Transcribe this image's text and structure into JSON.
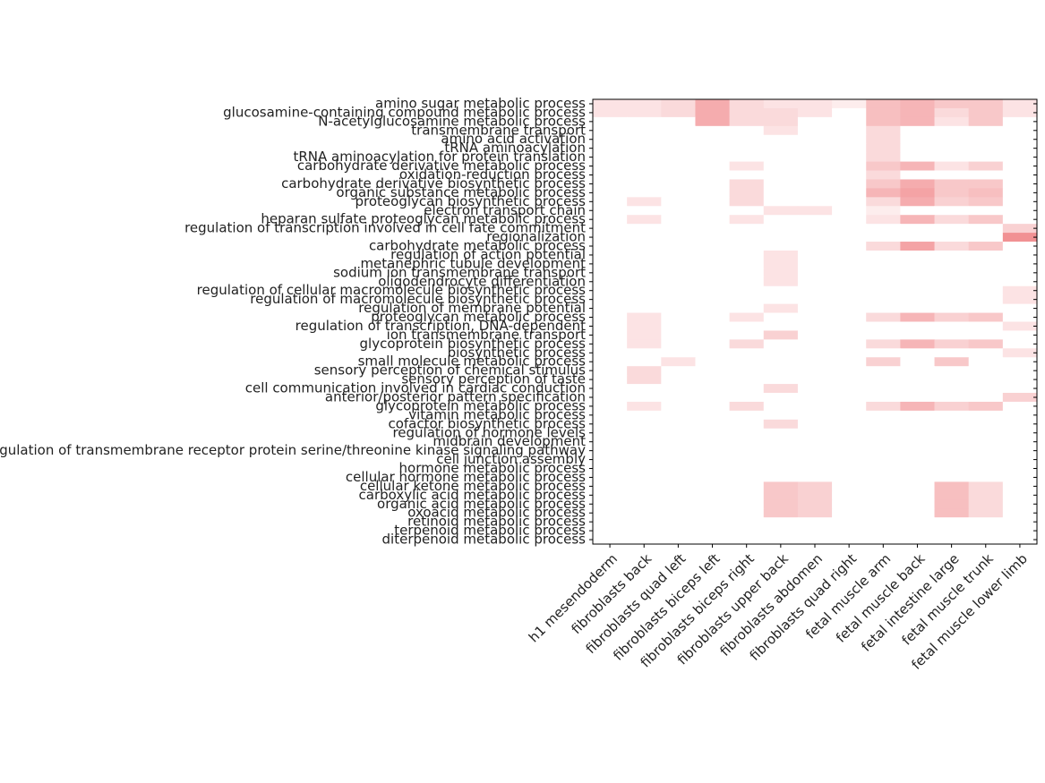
{
  "chart_data": {
    "type": "heatmap",
    "color_low": "#ffffff",
    "color_high": "#e8474b",
    "x": [
      "h1 mesendoderm",
      "fibroblasts back",
      "fibroblasts quad left",
      "fibroblasts biceps left",
      "fibroblasts biceps right",
      "fibroblasts upper back",
      "fibroblasts abdomen",
      "fibroblasts quad right",
      "fetal muscle arm",
      "fetal muscle back",
      "fetal intestine large",
      "fetal muscle trunk",
      "fetal muscle lower limb"
    ],
    "y": [
      "amino sugar metabolic process",
      "glucosamine-containing compound metabolic process",
      "N-acetylglucosamine metabolic process",
      "transmembrane transport",
      "amino acid activation",
      "tRNA aminoacylation",
      "tRNA aminoacylation for protein translation",
      "carbohydrate derivative metabolic process",
      "oxidation-reduction process",
      "carbohydrate derivative biosynthetic process",
      "organic substance metabolic process",
      "proteoglycan biosynthetic process",
      "electron transport chain",
      "heparan sulfate proteoglycan metabolic process",
      "regulation of transcription involved in cell fate commitment",
      "regionalization",
      "carbohydrate metabolic process",
      "regulation of action potential",
      "metanephric tubule development",
      "sodium ion transmembrane transport",
      "oligodendrocyte differentiation",
      "regulation of cellular macromolecule biosynthetic process",
      "regulation of macromolecule biosynthetic process",
      "regulation of membrane potential",
      "proteoglycan metabolic process",
      "regulation of transcription, DNA-dependent",
      "ion transmembrane transport",
      "glycoprotein biosynthetic process",
      "biosynthetic process",
      "small molecule metabolic process",
      "sensory perception of chemical stimulus",
      "sensory perception of taste",
      "cell communication involved in cardiac conduction",
      "anterior/posterior pattern specification",
      "glycoprotein metabolic process",
      "vitamin metabolic process",
      "cofactor biosynthetic process",
      "regulation of hormone levels",
      "midbrain development",
      "regulation of transmembrane receptor protein serine/threonine kinase signaling pathway",
      "cell junction assembly",
      "hormone metabolic process",
      "cellular hormone metabolic process",
      "cellular ketone metabolic process",
      "carboxylic acid metabolic process",
      "organic acid metabolic process",
      "oxoacid metabolic process",
      "retinoid metabolic process",
      "terpenoid metabolic process",
      "diterpenoid metabolic process"
    ],
    "values": [
      [
        0.15,
        0.15,
        0.2,
        0.45,
        0.2,
        0.15,
        0.15,
        0.1,
        0.35,
        0.4,
        0.3,
        0.3,
        0.15
      ],
      [
        0.15,
        0.15,
        0.2,
        0.45,
        0.2,
        0.2,
        0.15,
        0,
        0.35,
        0.4,
        0.2,
        0.3,
        0.15
      ],
      [
        0,
        0,
        0,
        0.45,
        0.2,
        0.2,
        0,
        0,
        0.35,
        0.4,
        0.15,
        0.3,
        0
      ],
      [
        0,
        0,
        0,
        0,
        0,
        0.15,
        0,
        0,
        0.2,
        0,
        0,
        0,
        0
      ],
      [
        0,
        0,
        0,
        0,
        0,
        0,
        0,
        0,
        0.2,
        0,
        0,
        0,
        0
      ],
      [
        0,
        0,
        0,
        0,
        0,
        0,
        0,
        0,
        0.2,
        0,
        0,
        0,
        0
      ],
      [
        0,
        0,
        0,
        0,
        0,
        0,
        0,
        0,
        0.2,
        0,
        0,
        0,
        0
      ],
      [
        0,
        0,
        0,
        0,
        0.15,
        0,
        0,
        0,
        0.3,
        0.4,
        0.15,
        0.25,
        0
      ],
      [
        0,
        0,
        0,
        0,
        0,
        0,
        0,
        0,
        0.2,
        0,
        0,
        0,
        0
      ],
      [
        0,
        0,
        0,
        0,
        0.2,
        0,
        0,
        0,
        0.3,
        0.45,
        0.3,
        0.3,
        0
      ],
      [
        0,
        0,
        0,
        0,
        0.2,
        0,
        0,
        0,
        0.4,
        0.5,
        0.3,
        0.35,
        0
      ],
      [
        0,
        0.15,
        0,
        0,
        0.2,
        0,
        0,
        0,
        0.2,
        0.45,
        0.25,
        0.3,
        0
      ],
      [
        0,
        0,
        0,
        0,
        0,
        0.15,
        0.15,
        0,
        0.1,
        0,
        0,
        0,
        0
      ],
      [
        0,
        0.15,
        0,
        0,
        0.15,
        0,
        0,
        0,
        0.15,
        0.4,
        0.2,
        0.3,
        0
      ],
      [
        0,
        0,
        0,
        0,
        0,
        0,
        0,
        0,
        0,
        0,
        0,
        0,
        0.25
      ],
      [
        0,
        0,
        0,
        0,
        0,
        0,
        0,
        0,
        0,
        0,
        0,
        0,
        0.6
      ],
      [
        0,
        0,
        0,
        0,
        0,
        0,
        0,
        0,
        0.2,
        0.5,
        0.2,
        0.3,
        0
      ],
      [
        0,
        0,
        0,
        0,
        0,
        0.15,
        0,
        0,
        0,
        0,
        0,
        0,
        0
      ],
      [
        0,
        0,
        0,
        0,
        0,
        0.15,
        0,
        0,
        0,
        0,
        0,
        0,
        0
      ],
      [
        0,
        0,
        0,
        0,
        0,
        0.15,
        0,
        0,
        0,
        0,
        0,
        0,
        0
      ],
      [
        0,
        0,
        0,
        0,
        0,
        0.15,
        0,
        0,
        0,
        0,
        0,
        0,
        0
      ],
      [
        0,
        0,
        0,
        0,
        0,
        0,
        0,
        0,
        0,
        0,
        0,
        0,
        0.15
      ],
      [
        0,
        0,
        0,
        0,
        0,
        0,
        0,
        0,
        0,
        0,
        0,
        0,
        0.15
      ],
      [
        0,
        0,
        0,
        0,
        0,
        0.15,
        0,
        0,
        0,
        0,
        0,
        0,
        0
      ],
      [
        0,
        0.15,
        0,
        0,
        0.15,
        0,
        0,
        0,
        0.2,
        0.4,
        0.25,
        0.3,
        0
      ],
      [
        0,
        0.15,
        0,
        0,
        0,
        0,
        0,
        0,
        0,
        0,
        0,
        0,
        0.15
      ],
      [
        0,
        0.15,
        0,
        0,
        0,
        0.25,
        0,
        0,
        0,
        0,
        0,
        0,
        0
      ],
      [
        0,
        0.15,
        0,
        0,
        0.2,
        0,
        0,
        0,
        0.2,
        0.4,
        0.25,
        0.3,
        0
      ],
      [
        0,
        0,
        0,
        0,
        0,
        0,
        0,
        0,
        0,
        0,
        0,
        0,
        0.15
      ],
      [
        0,
        0,
        0.15,
        0,
        0,
        0,
        0,
        0,
        0.25,
        0,
        0.3,
        0,
        0
      ],
      [
        0,
        0.2,
        0,
        0,
        0,
        0,
        0,
        0,
        0,
        0,
        0,
        0,
        0
      ],
      [
        0,
        0.2,
        0,
        0,
        0,
        0,
        0,
        0,
        0,
        0,
        0,
        0,
        0
      ],
      [
        0,
        0,
        0,
        0,
        0,
        0.2,
        0,
        0,
        0,
        0,
        0,
        0,
        0
      ],
      [
        0,
        0,
        0,
        0,
        0,
        0,
        0,
        0,
        0,
        0,
        0,
        0,
        0.25
      ],
      [
        0,
        0.15,
        0,
        0,
        0.2,
        0,
        0,
        0,
        0.2,
        0.4,
        0.25,
        0.3,
        0
      ],
      [
        0,
        0,
        0,
        0,
        0,
        0,
        0,
        0,
        0,
        0,
        0,
        0,
        0
      ],
      [
        0,
        0,
        0,
        0,
        0,
        0.2,
        0,
        0,
        0,
        0,
        0,
        0,
        0
      ],
      [
        0,
        0,
        0,
        0,
        0,
        0,
        0,
        0,
        0,
        0,
        0,
        0,
        0
      ],
      [
        0,
        0,
        0,
        0,
        0,
        0,
        0,
        0,
        0,
        0,
        0,
        0,
        0
      ],
      [
        0,
        0,
        0,
        0,
        0,
        0,
        0,
        0,
        0,
        0,
        0,
        0,
        0
      ],
      [
        0,
        0,
        0,
        0,
        0,
        0,
        0,
        0,
        0,
        0,
        0,
        0,
        0
      ],
      [
        0,
        0,
        0,
        0,
        0,
        0,
        0,
        0,
        0,
        0,
        0,
        0,
        0
      ],
      [
        0,
        0,
        0,
        0,
        0,
        0,
        0,
        0,
        0,
        0,
        0,
        0,
        0
      ],
      [
        0,
        0,
        0,
        0,
        0,
        0.3,
        0.25,
        0,
        0,
        0,
        0.35,
        0.2,
        0
      ],
      [
        0,
        0,
        0,
        0,
        0,
        0.3,
        0.25,
        0,
        0,
        0,
        0.35,
        0.2,
        0
      ],
      [
        0,
        0,
        0,
        0,
        0,
        0.3,
        0.25,
        0,
        0,
        0,
        0.35,
        0.2,
        0
      ],
      [
        0,
        0,
        0,
        0,
        0,
        0.3,
        0.25,
        0,
        0,
        0,
        0.35,
        0.2,
        0
      ],
      [
        0,
        0,
        0,
        0,
        0,
        0,
        0,
        0,
        0,
        0,
        0,
        0,
        0
      ],
      [
        0,
        0,
        0,
        0,
        0,
        0,
        0,
        0,
        0,
        0,
        0,
        0,
        0
      ],
      [
        0,
        0,
        0,
        0,
        0,
        0,
        0,
        0,
        0,
        0,
        0,
        0,
        0
      ]
    ]
  }
}
